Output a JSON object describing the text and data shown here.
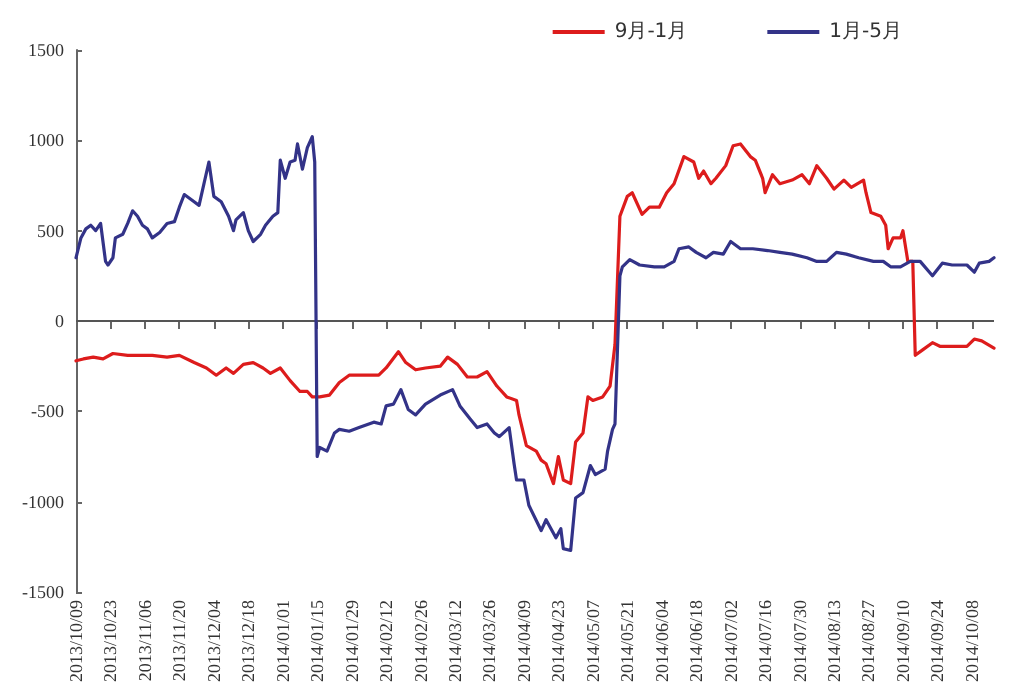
{
  "chart_data": {
    "type": "line",
    "xlim": [
      "2013-10-09",
      "2014-10-17"
    ],
    "xticks": [
      {
        "value": "2013-10-09",
        "label": "2013/10/09"
      },
      {
        "value": "2013-10-23",
        "label": "2013/10/23"
      },
      {
        "value": "2013-11-06",
        "label": "2013/11/06"
      },
      {
        "value": "2013-11-20",
        "label": "2013/11/20"
      },
      {
        "value": "2013-12-04",
        "label": "2013/12/04"
      },
      {
        "value": "2013-12-18",
        "label": "2013/12/18"
      },
      {
        "value": "2014-01-01",
        "label": "2014/01/01"
      },
      {
        "value": "2014-01-15",
        "label": "2014/01/15"
      },
      {
        "value": "2014-01-29",
        "label": "2014/01/29"
      },
      {
        "value": "2014-02-12",
        "label": "2014/02/12"
      },
      {
        "value": "2014-02-26",
        "label": "2014/02/26"
      },
      {
        "value": "2014-03-12",
        "label": "2014/03/12"
      },
      {
        "value": "2014-03-26",
        "label": "2014/03/26"
      },
      {
        "value": "2014-04-09",
        "label": "2014/04/09"
      },
      {
        "value": "2014-04-23",
        "label": "2014/04/23"
      },
      {
        "value": "2014-05-07",
        "label": "2014/05/07"
      },
      {
        "value": "2014-05-21",
        "label": "2014/05/21"
      },
      {
        "value": "2014-06-04",
        "label": "2014/06/04"
      },
      {
        "value": "2014-06-18",
        "label": "2014/06/18"
      },
      {
        "value": "2014-07-02",
        "label": "2014/07/02"
      },
      {
        "value": "2014-07-16",
        "label": "2014/07/16"
      },
      {
        "value": "2014-07-30",
        "label": "2014/07/30"
      },
      {
        "value": "2014-08-13",
        "label": "2014/08/13"
      },
      {
        "value": "2014-08-27",
        "label": "2014/08/27"
      },
      {
        "value": "2014-09-10",
        "label": "2014/09/10"
      },
      {
        "value": "2014-09-24",
        "label": "2014/09/24"
      },
      {
        "value": "2014-10-08",
        "label": "2014/10/08"
      }
    ],
    "ylim": [
      -1500,
      1500
    ],
    "yticks": [
      -1500,
      -1000,
      -500,
      0,
      500,
      1000,
      1500
    ],
    "grid": false,
    "ref_lines": [
      {
        "axis": "y",
        "value": 0,
        "color": "#555555",
        "line_style": "solid"
      }
    ],
    "legend": "top right",
    "marker": "none",
    "line_style": "solid",
    "series": [
      {
        "name": "9月-1月",
        "color": "#dd1c1c",
        "x": [
          "2013-10-09",
          "2013-10-12",
          "2013-10-16",
          "2013-10-20",
          "2013-10-24",
          "2013-10-30",
          "2013-11-04",
          "2013-11-09",
          "2013-11-15",
          "2013-11-20",
          "2013-11-26",
          "2013-12-01",
          "2013-12-05",
          "2013-12-09",
          "2013-12-12",
          "2013-12-16",
          "2013-12-20",
          "2013-12-24",
          "2013-12-27",
          "2013-12-31",
          "2014-01-04",
          "2014-01-08",
          "2014-01-11",
          "2014-01-13",
          "2014-01-16",
          "2014-01-20",
          "2014-01-24",
          "2014-01-28",
          "2014-02-04",
          "2014-02-09",
          "2014-02-12",
          "2014-02-17",
          "2014-02-20",
          "2014-02-24",
          "2014-02-28",
          "2014-03-06",
          "2014-03-09",
          "2014-03-13",
          "2014-03-17",
          "2014-03-21",
          "2014-03-25",
          "2014-03-29",
          "2014-04-02",
          "2014-04-06",
          "2014-04-07",
          "2014-04-10",
          "2014-04-14",
          "2014-04-16",
          "2014-04-18",
          "2014-04-21",
          "2014-04-23",
          "2014-04-25",
          "2014-04-28",
          "2014-04-30",
          "2014-05-03",
          "2014-05-05",
          "2014-05-07",
          "2014-05-11",
          "2014-05-14",
          "2014-05-16",
          "2014-05-18",
          "2014-05-21",
          "2014-05-23",
          "2014-05-27",
          "2014-05-30",
          "2014-06-03",
          "2014-06-06",
          "2014-06-09",
          "2014-06-13",
          "2014-06-17",
          "2014-06-19",
          "2014-06-21",
          "2014-06-24",
          "2014-06-26",
          "2014-06-30",
          "2014-07-03",
          "2014-07-06",
          "2014-07-10",
          "2014-07-12",
          "2014-07-15",
          "2014-07-16",
          "2014-07-19",
          "2014-07-22",
          "2014-07-27",
          "2014-07-31",
          "2014-08-03",
          "2014-08-06",
          "2014-08-10",
          "2014-08-13",
          "2014-08-17",
          "2014-08-20",
          "2014-08-25",
          "2014-08-26",
          "2014-08-28",
          "2014-09-01",
          "2014-09-03",
          "2014-09-04",
          "2014-09-06",
          "2014-09-09",
          "2014-09-10",
          "2014-09-12",
          "2014-09-14",
          "2014-09-15",
          "2014-09-18",
          "2014-09-22",
          "2014-09-25",
          "2014-09-30",
          "2014-10-06",
          "2014-10-09",
          "2014-10-12",
          "2014-10-17"
        ],
        "values": [
          -220,
          -210,
          -200,
          -210,
          -180,
          -190,
          -190,
          -190,
          -200,
          -190,
          -230,
          -260,
          -300,
          -260,
          -290,
          -240,
          -230,
          -260,
          -290,
          -260,
          -330,
          -390,
          -390,
          -420,
          -420,
          -410,
          -340,
          -300,
          -300,
          -300,
          -260,
          -170,
          -230,
          -270,
          -260,
          -250,
          -200,
          -240,
          -310,
          -310,
          -280,
          -360,
          -420,
          -440,
          -520,
          -690,
          -720,
          -770,
          -790,
          -900,
          -750,
          -880,
          -900,
          -670,
          -620,
          -420,
          -440,
          -420,
          -360,
          -130,
          580,
          690,
          710,
          590,
          630,
          630,
          710,
          760,
          910,
          880,
          790,
          830,
          760,
          790,
          860,
          970,
          980,
          910,
          890,
          790,
          710,
          810,
          760,
          780,
          810,
          760,
          860,
          790,
          730,
          780,
          740,
          780,
          710,
          600,
          580,
          530,
          400,
          460,
          460,
          500,
          330,
          330,
          -190,
          -160,
          -120,
          -140,
          -140,
          -140,
          -100,
          -110,
          -150
        ]
      },
      {
        "name": "1月-5月",
        "color": "#333388",
        "x": [
          "2013-10-09",
          "2013-10-11",
          "2013-10-13",
          "2013-10-15",
          "2013-10-17",
          "2013-10-19",
          "2013-10-21",
          "2013-10-22",
          "2013-10-24",
          "2013-10-25",
          "2013-10-28",
          "2013-10-30",
          "2013-11-01",
          "2013-11-03",
          "2013-11-05",
          "2013-11-07",
          "2013-11-09",
          "2013-11-12",
          "2013-11-15",
          "2013-11-18",
          "2013-11-20",
          "2013-11-22",
          "2013-11-26",
          "2013-11-28",
          "2013-11-30",
          "2013-12-02",
          "2013-12-04",
          "2013-12-07",
          "2013-12-10",
          "2013-12-12",
          "2013-12-13",
          "2013-12-16",
          "2013-12-18",
          "2013-12-20",
          "2013-12-23",
          "2013-12-25",
          "2013-12-28",
          "2013-12-30",
          "2013-12-31",
          "2014-01-02",
          "2014-01-04",
          "2014-01-06",
          "2014-01-07",
          "2014-01-09",
          "2014-01-11",
          "2014-01-13",
          "2014-01-14",
          "2014-01-15",
          "2014-01-16",
          "2014-01-19",
          "2014-01-22",
          "2014-01-24",
          "2014-01-28",
          "2014-02-01",
          "2014-02-07",
          "2014-02-10",
          "2014-02-12",
          "2014-02-15",
          "2014-02-18",
          "2014-02-21",
          "2014-02-24",
          "2014-02-28",
          "2014-03-06",
          "2014-03-11",
          "2014-03-14",
          "2014-03-18",
          "2014-03-21",
          "2014-03-25",
          "2014-03-28",
          "2014-03-30",
          "2014-04-03",
          "2014-04-05",
          "2014-04-06",
          "2014-04-09",
          "2014-04-11",
          "2014-04-16",
          "2014-04-18",
          "2014-04-20",
          "2014-04-22",
          "2014-04-24",
          "2014-04-25",
          "2014-04-28",
          "2014-04-30",
          "2014-05-03",
          "2014-05-06",
          "2014-05-08",
          "2014-05-12",
          "2014-05-13",
          "2014-05-15",
          "2014-05-16",
          "2014-05-18",
          "2014-05-19",
          "2014-05-22",
          "2014-05-26",
          "2014-06-01",
          "2014-06-05",
          "2014-06-09",
          "2014-06-11",
          "2014-06-15",
          "2014-06-18",
          "2014-06-22",
          "2014-06-25",
          "2014-06-29",
          "2014-07-02",
          "2014-07-06",
          "2014-07-11",
          "2014-07-17",
          "2014-07-22",
          "2014-07-27",
          "2014-08-02",
          "2014-08-06",
          "2014-08-10",
          "2014-08-14",
          "2014-08-18",
          "2014-08-23",
          "2014-08-29",
          "2014-09-02",
          "2014-09-05",
          "2014-09-09",
          "2014-09-13",
          "2014-09-17",
          "2014-09-22",
          "2014-09-26",
          "2014-09-30",
          "2014-10-06",
          "2014-10-09",
          "2014-10-11",
          "2014-10-15",
          "2014-10-17"
        ],
        "values": [
          350,
          460,
          510,
          530,
          500,
          540,
          330,
          310,
          350,
          460,
          480,
          540,
          610,
          580,
          530,
          510,
          460,
          490,
          540,
          550,
          630,
          700,
          660,
          640,
          760,
          880,
          690,
          660,
          580,
          500,
          560,
          600,
          500,
          440,
          480,
          530,
          580,
          600,
          890,
          790,
          880,
          890,
          980,
          840,
          960,
          1020,
          880,
          -750,
          -700,
          -720,
          -620,
          -600,
          -610,
          -590,
          -560,
          -570,
          -470,
          -460,
          -380,
          -490,
          -520,
          -460,
          -410,
          -380,
          -470,
          -540,
          -590,
          -570,
          -620,
          -640,
          -590,
          -790,
          -880,
          -880,
          -1020,
          -1160,
          -1100,
          -1150,
          -1200,
          -1150,
          -1260,
          -1270,
          -980,
          -950,
          -800,
          -850,
          -820,
          -720,
          -600,
          -570,
          250,
          300,
          340,
          310,
          300,
          300,
          330,
          400,
          410,
          380,
          350,
          380,
          370,
          440,
          400,
          400,
          390,
          380,
          370,
          350,
          330,
          330,
          380,
          370,
          350,
          330,
          330,
          300,
          300,
          330,
          330,
          250,
          320,
          310,
          310,
          270,
          320,
          330,
          350
        ]
      }
    ]
  }
}
